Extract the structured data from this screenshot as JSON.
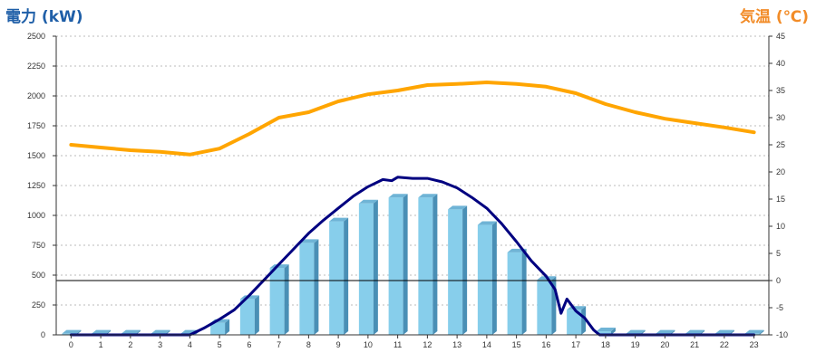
{
  "chart_data": {
    "type": "bar",
    "left_axis": {
      "label": "電力 (kW)",
      "range": [
        0,
        2500
      ],
      "ticks": [
        0,
        250,
        500,
        750,
        1000,
        1250,
        1500,
        1750,
        2000,
        2250,
        2500
      ]
    },
    "right_axis": {
      "label": "気温 (℃)",
      "range": [
        -10,
        45
      ],
      "ticks": [
        -10,
        -5,
        0,
        5,
        10,
        15,
        20,
        25,
        30,
        35,
        40,
        45
      ]
    },
    "categories": [
      "0",
      "1",
      "2",
      "3",
      "4",
      "5",
      "6",
      "7",
      "8",
      "9",
      "10",
      "11",
      "12",
      "13",
      "14",
      "15",
      "16",
      "17",
      "18",
      "19",
      "20",
      "21",
      "22",
      "23"
    ],
    "grid": true,
    "series": [
      {
        "kind": "bar",
        "axis": "left",
        "color": "#87ceeb",
        "values": [
          10,
          10,
          10,
          10,
          10,
          100,
          300,
          560,
          770,
          950,
          1100,
          1150,
          1150,
          1050,
          920,
          690,
          460,
          210,
          30,
          10,
          10,
          10,
          10,
          10
        ]
      },
      {
        "kind": "line",
        "axis": "left",
        "color": "#000080",
        "points": [
          [
            0,
            0
          ],
          [
            1,
            0
          ],
          [
            2,
            0
          ],
          [
            3,
            0
          ],
          [
            4,
            0
          ],
          [
            4.5,
            60
          ],
          [
            5,
            130
          ],
          [
            5.5,
            210
          ],
          [
            6,
            330
          ],
          [
            6.5,
            460
          ],
          [
            7,
            590
          ],
          [
            7.5,
            720
          ],
          [
            8,
            850
          ],
          [
            8.5,
            960
          ],
          [
            9,
            1060
          ],
          [
            9.5,
            1160
          ],
          [
            10,
            1240
          ],
          [
            10.5,
            1300
          ],
          [
            10.8,
            1290
          ],
          [
            11,
            1320
          ],
          [
            11.5,
            1310
          ],
          [
            12,
            1310
          ],
          [
            12.5,
            1280
          ],
          [
            13,
            1230
          ],
          [
            13.5,
            1150
          ],
          [
            14,
            1060
          ],
          [
            14.5,
            930
          ],
          [
            15,
            780
          ],
          [
            15.5,
            620
          ],
          [
            16,
            490
          ],
          [
            16.3,
            380
          ],
          [
            16.5,
            180
          ],
          [
            16.7,
            300
          ],
          [
            17,
            200
          ],
          [
            17.3,
            140
          ],
          [
            17.6,
            40
          ],
          [
            17.8,
            0
          ],
          [
            18,
            0
          ],
          [
            19,
            0
          ],
          [
            20,
            0
          ],
          [
            21,
            0
          ],
          [
            22,
            0
          ],
          [
            23,
            0
          ]
        ]
      },
      {
        "kind": "line",
        "axis": "right",
        "color": "#ffa500",
        "points": [
          [
            0,
            25
          ],
          [
            1,
            24.5
          ],
          [
            2,
            24
          ],
          [
            3,
            23.7
          ],
          [
            4,
            23.2
          ],
          [
            5,
            24.3
          ],
          [
            6,
            27
          ],
          [
            7,
            30
          ],
          [
            8,
            31
          ],
          [
            9,
            33
          ],
          [
            10,
            34.3
          ],
          [
            11,
            35
          ],
          [
            12,
            36
          ],
          [
            13,
            36.2
          ],
          [
            14,
            36.5
          ],
          [
            15,
            36.2
          ],
          [
            16,
            35.7
          ],
          [
            17,
            34.5
          ],
          [
            18,
            32.5
          ],
          [
            19,
            31
          ],
          [
            20,
            29.8
          ],
          [
            21,
            29
          ],
          [
            22,
            28.2
          ],
          [
            23,
            27.3
          ]
        ]
      }
    ],
    "reference_line": {
      "axis": "right",
      "value": 0,
      "color": "#000000"
    }
  }
}
